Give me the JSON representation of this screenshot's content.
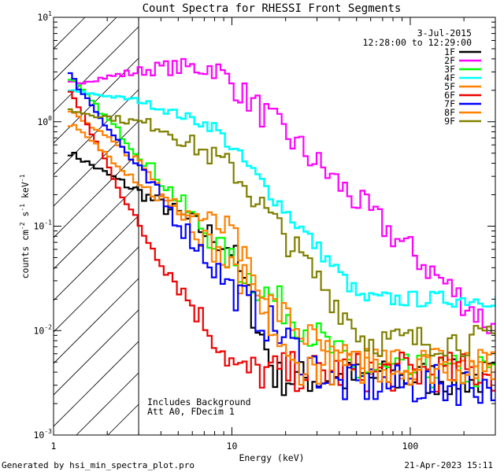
{
  "chart_data": {
    "type": "line",
    "title": "Count Spectra for RHESSI Front Segments",
    "xlabel": "Energy (keV)",
    "ylabel": {
      "base": "counts cm",
      "sup1": "-2",
      "mid1": " s",
      "sup2": "-1",
      "mid2": " keV",
      "sup3": "-1"
    },
    "xscale": "log",
    "yscale": "log",
    "xlim": [
      1,
      300
    ],
    "ylim": [
      0.001,
      10
    ],
    "x_ticks": [
      {
        "v": 1,
        "label": "1"
      },
      {
        "v": 10,
        "label": "10"
      },
      {
        "v": 100,
        "label": "100"
      }
    ],
    "y_ticks": [
      {
        "v": 10,
        "base": "10",
        "exp": "1"
      },
      {
        "v": 1,
        "base": "10",
        "exp": "0"
      },
      {
        "v": 0.1,
        "base": "10",
        "exp": "-1"
      },
      {
        "v": 0.01,
        "base": "10",
        "exp": "-2"
      },
      {
        "v": 0.001,
        "base": "10",
        "exp": "-3"
      }
    ],
    "excluded_region": {
      "xmin": 1,
      "xmax": 3,
      "style": "hatched"
    },
    "info": {
      "date": "3-Jul-2015",
      "time_range": "12:28:00 to 12:29:00"
    },
    "annotations": [
      "Includes Background",
      "Att A0, FDecim 1"
    ],
    "legend_position": "top-right",
    "series": [
      {
        "name": "1F",
        "color": "#000000",
        "start": 0.52,
        "knee": 0.13,
        "k1": 5,
        "p1": 1.1,
        "k2": 10,
        "p2": 5,
        "tail": 0.0035,
        "noise": 0.42
      },
      {
        "name": "2F",
        "color": "#ff00ff",
        "start": 2.3,
        "knee": 3.3,
        "k1": 4,
        "p1": 0.0,
        "k2": 8,
        "p2": 1.6,
        "tail": 0.009,
        "noise": 0.35
      },
      {
        "name": "3F",
        "color": "#00ff00",
        "start": 2.8,
        "knee": 0.5,
        "k1": 3,
        "p1": 2.0,
        "k2": 10,
        "p2": 1.5,
        "tail": 0.004,
        "noise": 0.4
      },
      {
        "name": "4F",
        "color": "#00ffff",
        "start": 2.0,
        "knee": 1.6,
        "k1": 3,
        "p1": 0.6,
        "k2": 8,
        "p2": 2.0,
        "tail": 0.02,
        "noise": 0.18
      },
      {
        "name": "5F",
        "color": "#ff8000",
        "start": 1.3,
        "knee": 0.42,
        "k1": 3,
        "p1": 2.0,
        "k2": 10,
        "p2": 1.5,
        "tail": 0.005,
        "noise": 0.4
      },
      {
        "name": "6F",
        "color": "#ee0000",
        "start": 2.2,
        "knee": 0.1,
        "k1": 3,
        "p1": 2.5,
        "k2": 10,
        "p2": 2.0,
        "tail": 0.004,
        "noise": 0.45
      },
      {
        "name": "7F",
        "color": "#0000ff",
        "start": 3.0,
        "knee": 0.35,
        "k1": 3,
        "p1": 2.2,
        "k2": 10,
        "p2": 1.6,
        "tail": 0.003,
        "noise": 0.45
      },
      {
        "name": "8F",
        "color": "#ff8000",
        "start": 1.0,
        "knee": 0.18,
        "k1": 4,
        "p1": 0.8,
        "k2": 10,
        "p2": 4,
        "tail": 0.0045,
        "noise": 0.4
      },
      {
        "name": "9F",
        "color": "#808000",
        "start": 1.3,
        "knee": 0.9,
        "k1": 4,
        "p1": 1.0,
        "k2": 10,
        "p2": 2.2,
        "tail": 0.008,
        "noise": 0.35
      }
    ]
  },
  "footer": {
    "left": "Generated by hsi_min_spectra_plot.pro",
    "right": "21-Apr-2023 15:11"
  }
}
